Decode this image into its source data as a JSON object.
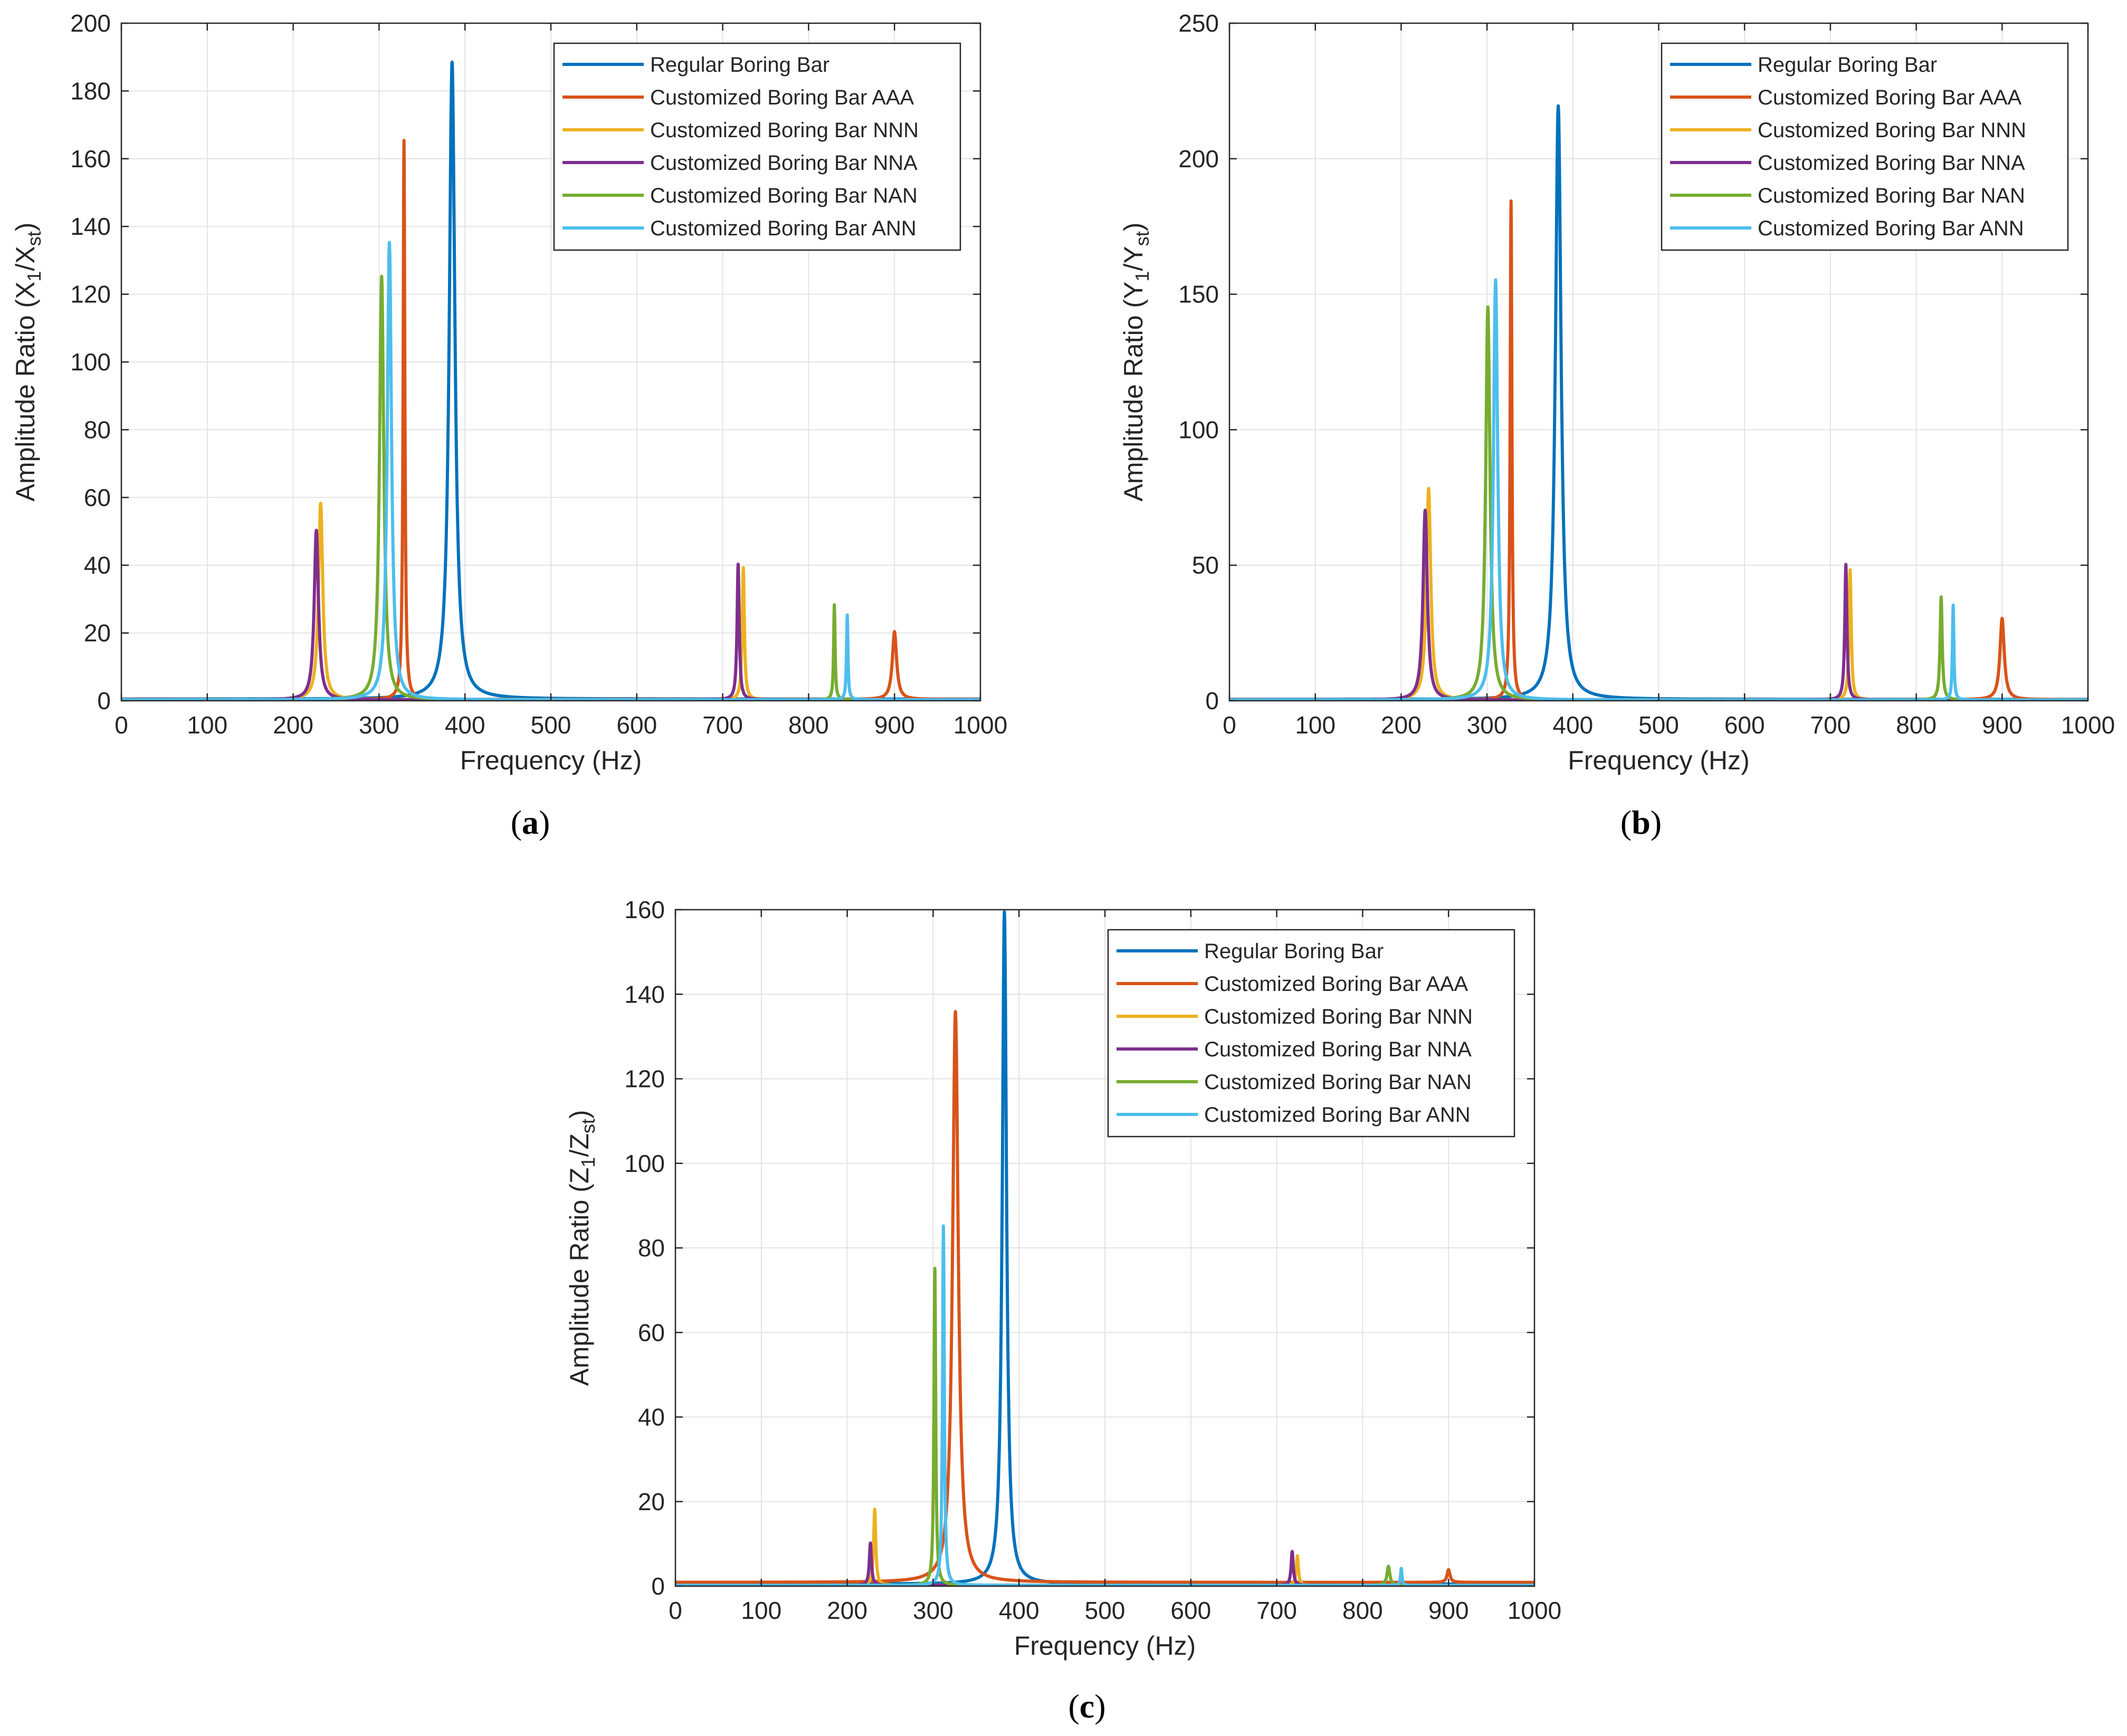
{
  "figure": {
    "captions": [
      "(a)",
      "(b)",
      "(c)"
    ],
    "caption_letters": [
      "a",
      "b",
      "c"
    ]
  },
  "chart_data": [
    {
      "type": "line",
      "panel": "a",
      "title": "",
      "xlabel": "Frequency (Hz)",
      "ylabel": {
        "prefix": "Amplitude Ratio (",
        "sym": "X",
        "sub1": "1",
        "mid": "/",
        "sym2": "X",
        "sub2": "st",
        "suffix": ")"
      },
      "xlim": [
        0,
        1000
      ],
      "ylim": [
        0,
        200
      ],
      "xticks": [
        0,
        100,
        200,
        300,
        400,
        500,
        600,
        700,
        800,
        900,
        1000
      ],
      "yticks": [
        0,
        20,
        40,
        60,
        80,
        100,
        120,
        140,
        160,
        180,
        200
      ],
      "grid": true,
      "legend_position": "top-right",
      "series": [
        {
          "name": "Regular Boring Bar",
          "color": "#0072BD",
          "baseline": 0.5,
          "peaks": [
            {
              "f": 385,
              "a": 188,
              "w": 4
            }
          ]
        },
        {
          "name": "Customized Boring Bar AAA",
          "color": "#D95319",
          "baseline": 0.4,
          "peaks": [
            {
              "f": 329,
              "a": 165,
              "w": 1.2
            },
            {
              "f": 900,
              "a": 20,
              "w": 3
            }
          ]
        },
        {
          "name": "Customized Boring Bar NNN",
          "color": "#EDB120",
          "baseline": 0.3,
          "peaks": [
            {
              "f": 232,
              "a": 58,
              "w": 3
            },
            {
              "f": 724,
              "a": 39,
              "w": 1.5
            }
          ]
        },
        {
          "name": "Customized Boring Bar NNA",
          "color": "#7E2F8E",
          "baseline": 0.3,
          "peaks": [
            {
              "f": 227,
              "a": 50,
              "w": 3
            },
            {
              "f": 718,
              "a": 40,
              "w": 1.5
            }
          ]
        },
        {
          "name": "Customized Boring Bar NAN",
          "color": "#77AC30",
          "baseline": 0.3,
          "peaks": [
            {
              "f": 303,
              "a": 125,
              "w": 3
            },
            {
              "f": 830,
              "a": 28,
              "w": 1
            }
          ]
        },
        {
          "name": "Customized Boring Bar ANN",
          "color": "#4DBEEE",
          "baseline": 0.3,
          "peaks": [
            {
              "f": 312,
              "a": 135,
              "w": 3
            },
            {
              "f": 845,
              "a": 25,
              "w": 1
            }
          ]
        }
      ]
    },
    {
      "type": "line",
      "panel": "b",
      "title": "",
      "xlabel": "Frequency (Hz)",
      "ylabel": {
        "prefix": "Amplitude Ratio (",
        "sym": "Y",
        "sub1": "1",
        "mid": "/",
        "sym2": "Y",
        "sub2": "st",
        "suffix": ")"
      },
      "xlim": [
        0,
        1000
      ],
      "ylim": [
        0,
        250
      ],
      "xticks": [
        0,
        100,
        200,
        300,
        400,
        500,
        600,
        700,
        800,
        900,
        1000
      ],
      "yticks": [
        0,
        50,
        100,
        150,
        200,
        250
      ],
      "grid": true,
      "legend_position": "top-right",
      "series": [
        {
          "name": "Regular Boring Bar",
          "color": "#0072BD",
          "baseline": 0.5,
          "peaks": [
            {
              "f": 383,
              "a": 219,
              "w": 4
            }
          ]
        },
        {
          "name": "Customized Boring Bar AAA",
          "color": "#D95319",
          "baseline": 0.4,
          "peaks": [
            {
              "f": 328,
              "a": 184,
              "w": 1.2
            },
            {
              "f": 900,
              "a": 30,
              "w": 3
            }
          ]
        },
        {
          "name": "Customized Boring Bar NNN",
          "color": "#EDB120",
          "baseline": 0.3,
          "peaks": [
            {
              "f": 232,
              "a": 78,
              "w": 3
            },
            {
              "f": 723,
              "a": 48,
              "w": 1.5
            }
          ]
        },
        {
          "name": "Customized Boring Bar NNA",
          "color": "#7E2F8E",
          "baseline": 0.3,
          "peaks": [
            {
              "f": 228,
              "a": 70,
              "w": 3
            },
            {
              "f": 718,
              "a": 50,
              "w": 1.5
            }
          ]
        },
        {
          "name": "Customized Boring Bar NAN",
          "color": "#77AC30",
          "baseline": 0.3,
          "peaks": [
            {
              "f": 301,
              "a": 145,
              "w": 3
            },
            {
              "f": 829,
              "a": 38,
              "w": 1.5
            }
          ]
        },
        {
          "name": "Customized Boring Bar ANN",
          "color": "#4DBEEE",
          "baseline": 0.3,
          "peaks": [
            {
              "f": 310,
              "a": 155,
              "w": 3
            },
            {
              "f": 843,
              "a": 35,
              "w": 1
            }
          ]
        }
      ]
    },
    {
      "type": "line",
      "panel": "c",
      "title": "",
      "xlabel": "Frequency (Hz)",
      "ylabel": {
        "prefix": "Amplitude Ratio (",
        "sym": "Z",
        "sub1": "1",
        "mid": "/",
        "sym2": "Z",
        "sub2": "st",
        "suffix": ")"
      },
      "xlim": [
        0,
        1000
      ],
      "ylim": [
        0,
        160
      ],
      "xticks": [
        0,
        100,
        200,
        300,
        400,
        500,
        600,
        700,
        800,
        900,
        1000
      ],
      "yticks": [
        0,
        20,
        40,
        60,
        80,
        100,
        120,
        140,
        160
      ],
      "grid": true,
      "legend_position": "top-right",
      "series": [
        {
          "name": "Regular Boring Bar",
          "color": "#0072BD",
          "baseline": 0.5,
          "peaks": [
            {
              "f": 383,
              "a": 159,
              "w": 3
            }
          ]
        },
        {
          "name": "Customized Boring Bar AAA",
          "color": "#D95319",
          "baseline": 0.9,
          "peaks": [
            {
              "f": 326,
              "a": 135,
              "w": 4
            },
            {
              "f": 900,
              "a": 3,
              "w": 2
            }
          ]
        },
        {
          "name": "Customized Boring Bar NNN",
          "color": "#EDB120",
          "baseline": 0.2,
          "peaks": [
            {
              "f": 232,
              "a": 18,
              "w": 1.5
            },
            {
              "f": 724,
              "a": 7,
              "w": 1.5
            }
          ]
        },
        {
          "name": "Customized Boring Bar NNA",
          "color": "#7E2F8E",
          "baseline": 0.2,
          "peaks": [
            {
              "f": 227,
              "a": 10,
              "w": 1.5
            },
            {
              "f": 718,
              "a": 8,
              "w": 1.5
            }
          ]
        },
        {
          "name": "Customized Boring Bar NAN",
          "color": "#77AC30",
          "baseline": 0.2,
          "peaks": [
            {
              "f": 302,
              "a": 75,
              "w": 1.2
            },
            {
              "f": 830,
              "a": 4.5,
              "w": 2
            }
          ]
        },
        {
          "name": "Customized Boring Bar ANN",
          "color": "#4DBEEE",
          "baseline": 0.2,
          "peaks": [
            {
              "f": 312,
              "a": 85,
              "w": 1.2
            },
            {
              "f": 845,
              "a": 4,
              "w": 1
            }
          ]
        }
      ]
    }
  ]
}
